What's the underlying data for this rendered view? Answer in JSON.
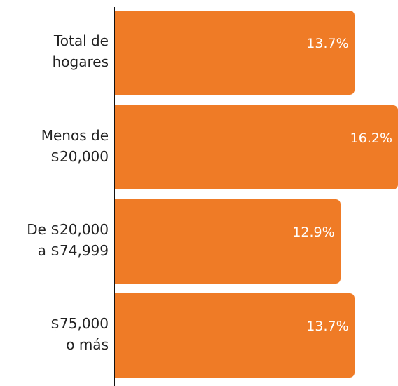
{
  "chart_data": {
    "type": "bar",
    "orientation": "horizontal",
    "categories": [
      "Total de\nhogares",
      "Menos de\n$20,000",
      "De $20,000\na $74,999",
      "$75,000\no más"
    ],
    "values": [
      13.7,
      16.2,
      12.9,
      13.7
    ],
    "value_labels": [
      "13.7%",
      "16.2%",
      "12.9%",
      "13.7%"
    ],
    "color": "#ef7b26"
  }
}
